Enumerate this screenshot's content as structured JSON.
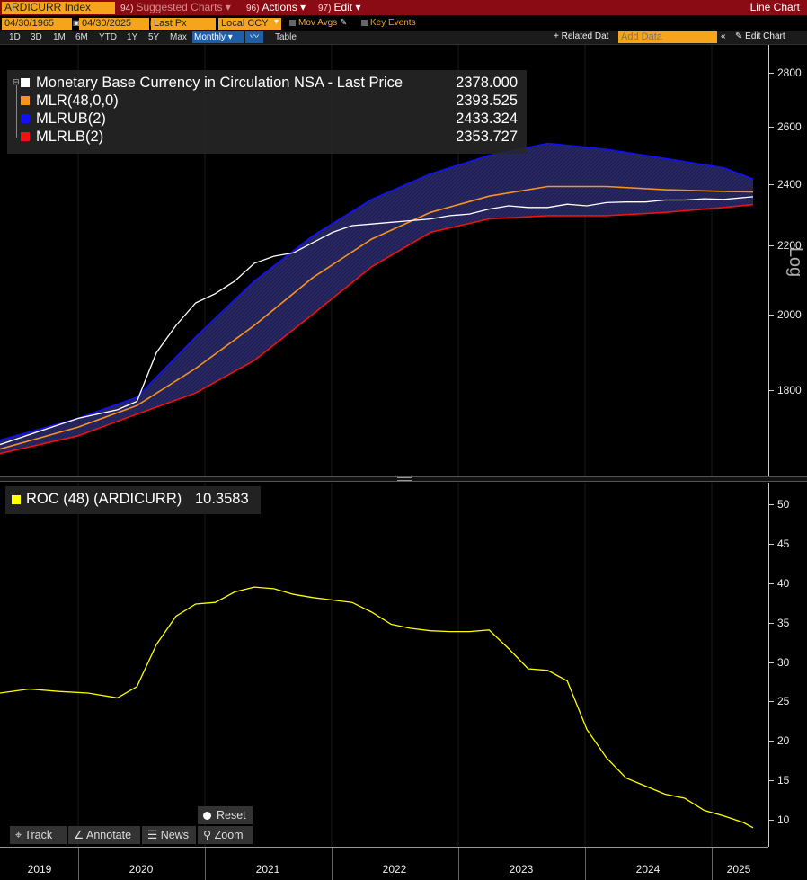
{
  "titlebar": {
    "ticker": "ARDICURR Index",
    "suggested_num": "94)",
    "suggested": "Suggested Charts",
    "actions_num": "96)",
    "actions": "Actions",
    "edit_num": "97)",
    "edit": "Edit",
    "chart_type": "Line Chart"
  },
  "controls": {
    "start_date": "04/30/1965",
    "end_date": "04/30/2025",
    "price_field": "Last Px",
    "currency": "Local CCY",
    "mov_avgs": "Mov Avgs",
    "key_events": "Key Events"
  },
  "periods": [
    "1D",
    "3D",
    "1M",
    "6M",
    "YTD",
    "1Y",
    "5Y",
    "Max"
  ],
  "frequency": "Monthly",
  "table_label": "Table",
  "related_data": "Related Dat",
  "add_data_placeholder": "Add Data",
  "edit_chart": "Edit Chart",
  "legend": {
    "rows": [
      {
        "label": "Monetary Base Currency in Circulation NSA - Last Price",
        "value": "2378.000",
        "color": "#ffffff"
      },
      {
        "label": "MLR(48,0,0)",
        "value": "2393.525",
        "color": "#f7931e"
      },
      {
        "label": "MLRUB(2)",
        "value": "2433.324",
        "color": "#1010ff"
      },
      {
        "label": "MLRLB(2)",
        "value": "2353.727",
        "color": "#ee1111"
      }
    ]
  },
  "roc_legend": {
    "label": "ROC (48) (ARDICURR)",
    "value": "10.3583",
    "color": "#ffff00"
  },
  "axis_top": {
    "scale_label": "Log",
    "ticks": [
      "2800",
      "2600",
      "2400",
      "2200",
      "2000",
      "1800"
    ]
  },
  "axis_bot": {
    "ticks": [
      "50",
      "45",
      "40",
      "35",
      "30",
      "25",
      "20",
      "15",
      "10"
    ]
  },
  "x_axis": {
    "labels": [
      "2019",
      "2020",
      "2021",
      "2022",
      "2023",
      "2024",
      "2025"
    ]
  },
  "tools": {
    "reset": "Reset",
    "track": "Track",
    "annotate": "Annotate",
    "news": "News",
    "zoom": "Zoom"
  },
  "chart_data": [
    {
      "type": "line",
      "log_scale": true,
      "ylim": [
        1650,
        2900
      ],
      "x_range": [
        "2018-11",
        "2025-04"
      ],
      "series": [
        {
          "name": "Monetary Base Currency in Circulation NSA - Last Price",
          "color": "#ffffff",
          "x": [
            "2018-11",
            "2019-03",
            "2019-07",
            "2019-11",
            "2020-01",
            "2020-03",
            "2020-05",
            "2020-07",
            "2020-09",
            "2020-11",
            "2021-01",
            "2021-03",
            "2021-05",
            "2021-07",
            "2021-09",
            "2021-11",
            "2022-01",
            "2022-03",
            "2022-05",
            "2022-07",
            "2022-09",
            "2022-11",
            "2023-01",
            "2023-03",
            "2023-05",
            "2023-07",
            "2023-09",
            "2023-11",
            "2024-01",
            "2024-03",
            "2024-05",
            "2024-07",
            "2024-09",
            "2024-11",
            "2025-01",
            "2025-04"
          ],
          "values": [
            1720,
            1750,
            1780,
            1800,
            1820,
            1940,
            2010,
            2070,
            2095,
            2130,
            2180,
            2200,
            2210,
            2240,
            2270,
            2290,
            2295,
            2300,
            2305,
            2310,
            2320,
            2325,
            2340,
            2350,
            2345,
            2345,
            2355,
            2350,
            2360,
            2362,
            2362,
            2368,
            2368,
            2372,
            2370,
            2378
          ]
        },
        {
          "name": "MLR(48,0,0)",
          "color": "#f7931e",
          "x": [
            "2018-11",
            "2019-07",
            "2020-01",
            "2020-07",
            "2021-01",
            "2021-07",
            "2022-01",
            "2022-07",
            "2023-01",
            "2023-07",
            "2024-01",
            "2024-07",
            "2025-01",
            "2025-04"
          ],
          "values": [
            1710,
            1760,
            1810,
            1900,
            2010,
            2140,
            2250,
            2330,
            2380,
            2410,
            2410,
            2400,
            2395,
            2393.525
          ]
        },
        {
          "name": "MLRUB(2)",
          "color": "#1010ff",
          "x": [
            "2018-11",
            "2019-07",
            "2020-01",
            "2020-07",
            "2021-01",
            "2021-07",
            "2022-01",
            "2022-07",
            "2023-01",
            "2023-07",
            "2024-01",
            "2024-07",
            "2025-01",
            "2025-04"
          ],
          "values": [
            1730,
            1780,
            1830,
            1980,
            2130,
            2260,
            2370,
            2450,
            2510,
            2550,
            2530,
            2500,
            2470,
            2433.324
          ]
        },
        {
          "name": "MLRLB(2)",
          "color": "#ee1111",
          "x": [
            "2018-11",
            "2019-07",
            "2020-01",
            "2020-07",
            "2021-01",
            "2021-07",
            "2022-01",
            "2022-07",
            "2023-01",
            "2023-07",
            "2024-01",
            "2024-07",
            "2025-01",
            "2025-04"
          ],
          "values": [
            1700,
            1740,
            1790,
            1840,
            1920,
            2040,
            2170,
            2270,
            2310,
            2320,
            2320,
            2330,
            2345,
            2353.727
          ]
        }
      ]
    },
    {
      "type": "line",
      "ylim": [
        8,
        53
      ],
      "x_range": [
        "2018-11",
        "2025-04"
      ],
      "series": [
        {
          "name": "ROC (48) (ARDICURR)",
          "color": "#ffff00",
          "x": [
            "2018-11",
            "2019-02",
            "2019-05",
            "2019-08",
            "2019-11",
            "2020-01",
            "2020-03",
            "2020-05",
            "2020-07",
            "2020-09",
            "2020-11",
            "2021-01",
            "2021-03",
            "2021-05",
            "2021-07",
            "2021-09",
            "2021-11",
            "2022-01",
            "2022-03",
            "2022-05",
            "2022-07",
            "2022-09",
            "2022-11",
            "2023-01",
            "2023-03",
            "2023-05",
            "2023-07",
            "2023-09",
            "2023-11",
            "2024-01",
            "2024-03",
            "2024-05",
            "2024-07",
            "2024-09",
            "2024-11",
            "2025-01",
            "2025-03",
            "2025-04"
          ],
          "values": [
            27,
            27.5,
            27.2,
            27,
            26.4,
            27.8,
            33,
            36.5,
            38,
            38.2,
            39.5,
            40.1,
            39.9,
            39.2,
            38.8,
            38.5,
            38.2,
            37,
            35.5,
            35,
            34.7,
            34.6,
            34.6,
            34.8,
            32.5,
            30,
            29.8,
            28.5,
            22.5,
            19,
            16.5,
            15.5,
            14.5,
            14,
            12.5,
            11.8,
            11,
            10.3583
          ]
        }
      ]
    }
  ]
}
